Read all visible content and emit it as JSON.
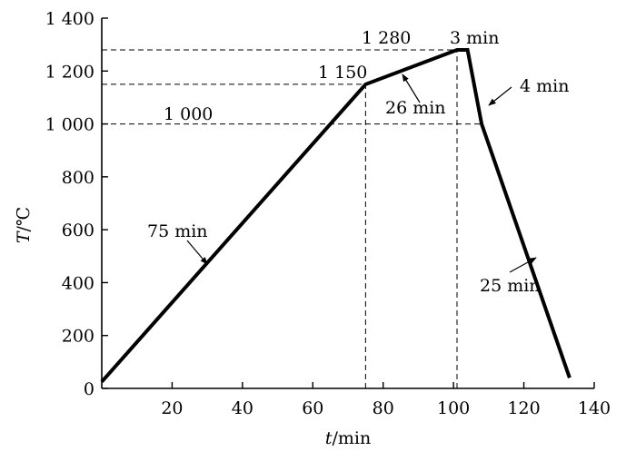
{
  "chart_data": {
    "type": "line",
    "title": "",
    "xlabel_italic": "t",
    "xlabel_unit": "/min",
    "ylabel_italic": "T",
    "ylabel_unit": "/℃",
    "xlim": [
      0,
      140
    ],
    "ylim": [
      0,
      1400
    ],
    "x_ticks": [
      20,
      40,
      60,
      80,
      100,
      120,
      140
    ],
    "x_tick_labels": [
      "20",
      "40",
      "60",
      "80",
      "100",
      "120",
      "140"
    ],
    "y_ticks": [
      0,
      200,
      400,
      600,
      800,
      1000,
      1200,
      1400
    ],
    "y_tick_labels": [
      "0",
      "200",
      "400",
      "600",
      "800",
      "1 000",
      "1 200",
      "1 400"
    ],
    "grid": false,
    "series": [
      {
        "x": [
          0,
          75,
          101,
          104,
          108,
          133
        ],
        "y": [
          25,
          1150,
          1280,
          1280,
          1000,
          40
        ]
      }
    ],
    "guides": [
      {
        "type": "h",
        "y": 1280,
        "x_to": 104
      },
      {
        "type": "h",
        "y": 1150,
        "x_to": 75
      },
      {
        "type": "h",
        "y": 1000,
        "x_to": 108
      },
      {
        "type": "v",
        "x": 75,
        "y_to": 1150
      },
      {
        "type": "v",
        "x": 101,
        "y_to": 1280
      }
    ],
    "level_labels": [
      "1 280",
      "1 150",
      "1 000"
    ],
    "segment_labels": [
      "75 min",
      "26 min",
      "3 min",
      "4 min",
      "25 min"
    ]
  }
}
